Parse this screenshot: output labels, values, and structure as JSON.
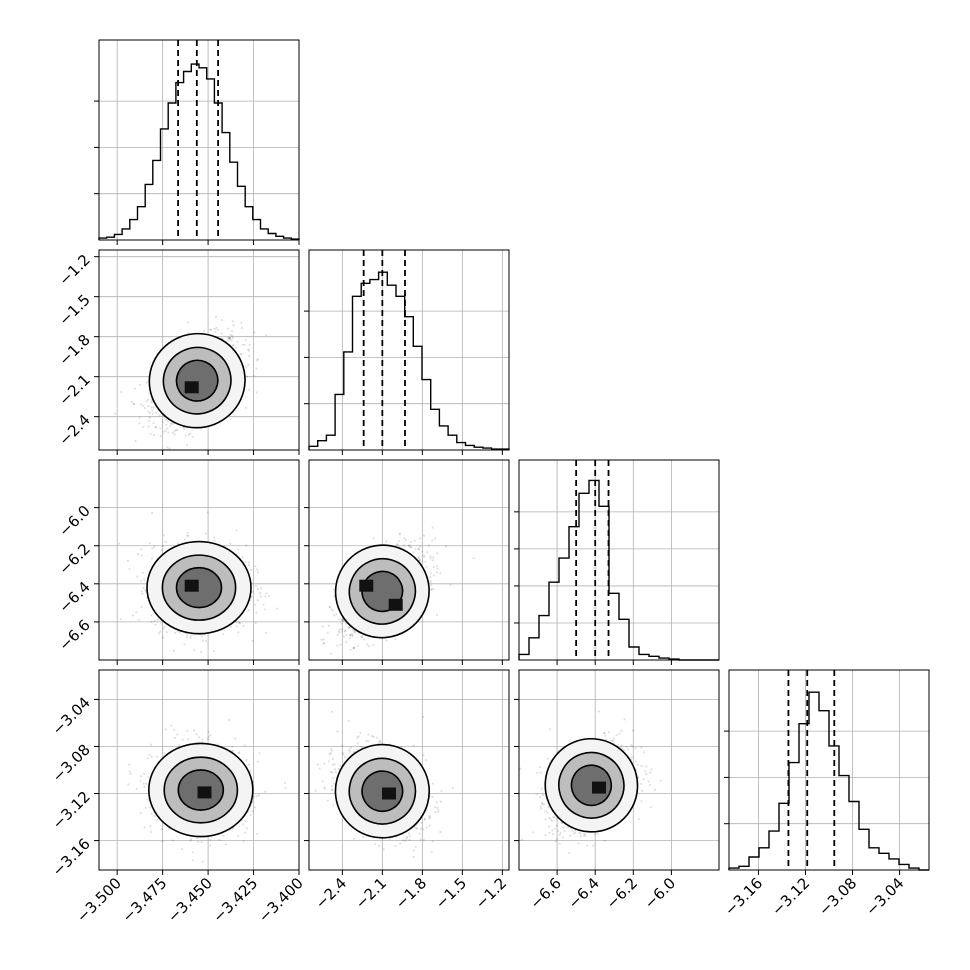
{
  "chart_data": {
    "type": "corner",
    "num_parameters": 4,
    "parameters": [
      {
        "range": [
          -3.51,
          -3.4
        ],
        "ticks": [
          -3.5,
          -3.475,
          -3.45,
          -3.425,
          -3.4
        ],
        "tick_labels": [
          "−3.500",
          "−3.475",
          "−3.450",
          "−3.425",
          "−3.400"
        ],
        "quantiles": [
          -3.4665,
          -3.4562,
          -3.4445
        ],
        "histogram": [
          0.01,
          0.015,
          0.03,
          0.06,
          0.11,
          0.18,
          0.3,
          0.43,
          0.6,
          0.74,
          0.85,
          0.91,
          0.95,
          0.93,
          0.87,
          0.74,
          0.58,
          0.42,
          0.29,
          0.18,
          0.11,
          0.06,
          0.035,
          0.02,
          0.01,
          0.005
        ],
        "hist_ticks": [
          0.25,
          0.5,
          0.75
        ]
      },
      {
        "range": [
          -2.65,
          -1.15
        ],
        "ticks": [
          -2.4,
          -2.1,
          -1.8,
          -1.5,
          -1.2
        ],
        "tick_labels": [
          "−2.4",
          "−2.1",
          "−1.8",
          "−1.5",
          "−1.2"
        ],
        "quantiles": [
          -2.24,
          -2.1,
          -1.93
        ],
        "histogram": [
          0.02,
          0.05,
          0.08,
          0.3,
          0.53,
          0.83,
          0.9,
          0.92,
          0.96,
          0.89,
          0.83,
          0.72,
          0.56,
          0.38,
          0.22,
          0.13,
          0.08,
          0.04,
          0.025,
          0.015,
          0.01,
          0.005,
          0.005
        ],
        "hist_ticks": [
          0.25,
          0.5,
          0.75
        ]
      },
      {
        "range": [
          -6.8,
          -5.75
        ],
        "ticks": [
          -6.6,
          -6.4,
          -6.2,
          -6.0
        ],
        "tick_labels": [
          "−6.6",
          "−6.4",
          "−6.2",
          "−6.0"
        ],
        "quantiles": [
          -6.5,
          -6.4,
          -6.33
        ],
        "histogram": [
          0.03,
          0.12,
          0.24,
          0.42,
          0.55,
          0.72,
          0.9,
          0.97,
          0.83,
          0.36,
          0.22,
          0.07,
          0.03,
          0.02,
          0.01,
          0.005,
          0.0,
          0.0,
          0.0,
          0.0
        ],
        "hist_ticks": [
          0.2,
          0.4,
          0.6,
          0.8
        ]
      },
      {
        "range": [
          -3.185,
          -3.015
        ],
        "ticks": [
          -3.16,
          -3.12,
          -3.08,
          -3.04
        ],
        "tick_labels": [
          "−3.16",
          "−3.12",
          "−3.08",
          "−3.04"
        ],
        "quantiles": [
          -3.1345,
          -3.1185,
          -3.0955
        ],
        "histogram": [
          0.01,
          0.02,
          0.07,
          0.12,
          0.21,
          0.36,
          0.58,
          0.79,
          0.96,
          0.86,
          0.67,
          0.51,
          0.37,
          0.22,
          0.12,
          0.09,
          0.06,
          0.03,
          0.01,
          0.0
        ],
        "hist_ticks": [
          0.25,
          0.5,
          0.75
        ]
      }
    ],
    "pairs": [
      {
        "x": 0,
        "y": 1,
        "center": [
          -3.456,
          -2.13
        ],
        "spread": [
          0.012,
          0.16
        ],
        "corr": 0.45,
        "peaks": [
          [
            -3.459,
            -2.18
          ]
        ]
      },
      {
        "x": 0,
        "y": 2,
        "center": [
          -3.455,
          -6.42
        ],
        "spread": [
          0.013,
          0.11
        ],
        "corr": 0.0,
        "peaks": [
          [
            -3.459,
            -6.41
          ]
        ]
      },
      {
        "x": 1,
        "y": 2,
        "center": [
          -2.1,
          -6.44
        ],
        "spread": [
          0.16,
          0.11
        ],
        "corr": 0.55,
        "peaks": [
          [
            -2.22,
            -6.41
          ],
          [
            -2.0,
            -6.51
          ]
        ]
      },
      {
        "x": 0,
        "y": 3,
        "center": [
          -3.454,
          -3.117
        ],
        "spread": [
          0.013,
          0.018
        ],
        "corr": 0.0,
        "peaks": [
          [
            -3.452,
            -3.119
          ]
        ]
      },
      {
        "x": 1,
        "y": 3,
        "center": [
          -2.1,
          -3.118
        ],
        "spread": [
          0.16,
          0.018
        ],
        "corr": -0.3,
        "peaks": [
          [
            -2.05,
            -3.12
          ]
        ]
      },
      {
        "x": 2,
        "y": 3,
        "center": [
          -6.42,
          -3.113
        ],
        "spread": [
          0.11,
          0.018
        ],
        "corr": 0.35,
        "peaks": [
          [
            -6.38,
            -3.115
          ]
        ]
      }
    ],
    "contour_levels": [
      0.39,
      0.86,
      0.99
    ],
    "grid": true,
    "colors": {
      "line": "#000000",
      "points": "#000000",
      "grid": "#b0b0b0"
    }
  }
}
